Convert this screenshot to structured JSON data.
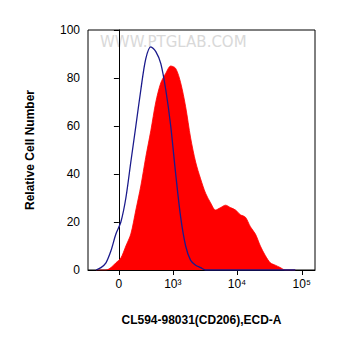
{
  "chart_data": {
    "type": "line",
    "xlabel": "CL594-98031(CD206),ECD-A",
    "ylabel": "Relative Cell Number",
    "annotations": [
      "WWW.PTGLAB.COM"
    ],
    "x": [
      -272,
      -205,
      -143,
      -86,
      -32,
      21,
      75,
      131,
      192,
      258,
      332,
      418,
      517,
      632,
      767,
      923,
      1110,
      1332,
      1596,
      1911,
      2286,
      2730,
      3264,
      3897,
      4656,
      5562,
      6642,
      7926,
      9465,
      11301,
      13491,
      16104,
      19227,
      22950,
      27390,
      32700,
      39060,
      46620,
      55650,
      66450,
      79320
    ],
    "series": [
      {
        "type": "area",
        "color": "#ff0000",
        "values": [
          0,
          0,
          0,
          1,
          3,
          5,
          10,
          15,
          25,
          35,
          47,
          58,
          70,
          78,
          82,
          85,
          84,
          78,
          68,
          55,
          45,
          38,
          32,
          28,
          25,
          26,
          27,
          26,
          25,
          23,
          22,
          18,
          15,
          10,
          6,
          3,
          2,
          1,
          0,
          0,
          0
        ]
      },
      {
        "type": "line",
        "color": "#1a1a8c",
        "values": [
          0,
          1,
          3,
          8,
          15,
          20,
          30,
          45,
          60,
          75,
          88,
          93,
          91,
          86,
          75,
          60,
          40,
          22,
          10,
          4,
          2,
          1,
          0,
          0,
          0,
          0,
          0,
          0,
          0,
          0,
          0,
          0,
          0,
          0,
          0,
          0,
          0,
          0,
          0,
          0,
          0
        ]
      }
    ],
    "xlim": [
      -400,
      160000
    ],
    "xticks": [
      0,
      {
        "value": 1000,
        "label": "10³"
      },
      {
        "value": 10000,
        "label": "10⁴"
      },
      {
        "value": 100000,
        "label": "10⁵"
      }
    ],
    "ylim": [
      0,
      100
    ],
    "yticks": [
      0,
      20,
      40,
      60,
      80,
      100
    ],
    "grid": false
  }
}
